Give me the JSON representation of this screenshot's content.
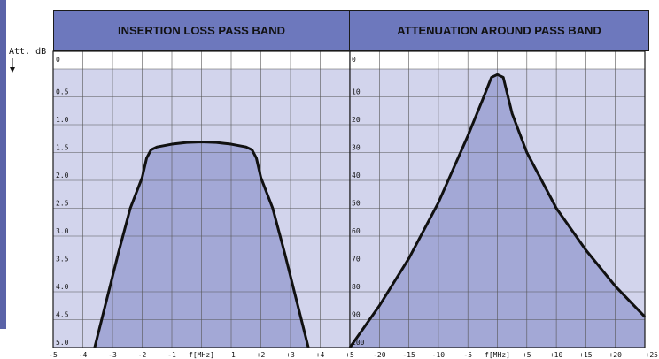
{
  "axis_caption": "Att.  dB",
  "chart_data": [
    {
      "type": "area",
      "title": "INSERTION LOSS PASS BAND",
      "xlabel": "f[MHz]",
      "ylabel": "Att. dB",
      "xlim": [
        -5,
        5
      ],
      "ylim": [
        0,
        5.0
      ],
      "y_inverted": true,
      "grid": true,
      "x_ticks": [
        "-5",
        "-4",
        "-3",
        "-2",
        "-1",
        "f[MHz]",
        "+1",
        "+2",
        "+3",
        "+4",
        "+5"
      ],
      "y_ticks": [
        "0",
        "0.5",
        "1.0",
        "1.5",
        "2.0",
        "2.5",
        "3.0",
        "3.5",
        "4.0",
        "4.5",
        "5.0"
      ],
      "x": [
        -3.6,
        -3.2,
        -2.8,
        -2.4,
        -2.0,
        -1.85,
        -1.7,
        -1.5,
        -1.0,
        -0.5,
        0,
        0.5,
        1.0,
        1.5,
        1.7,
        1.85,
        2.0,
        2.4,
        2.8,
        3.2,
        3.6
      ],
      "y": [
        5.0,
        4.15,
        3.3,
        2.5,
        1.95,
        1.6,
        1.45,
        1.4,
        1.35,
        1.32,
        1.31,
        1.32,
        1.35,
        1.4,
        1.45,
        1.6,
        1.95,
        2.5,
        3.3,
        4.15,
        5.0
      ]
    },
    {
      "type": "area",
      "title": "ATTENUATION AROUND PASS BAND",
      "xlabel": "f[MHz]",
      "ylabel": "Att. dB",
      "xlim": [
        -25,
        25
      ],
      "ylim": [
        0,
        100
      ],
      "y_inverted": true,
      "grid": true,
      "x_ticks": [
        "-20",
        "-15",
        "-10",
        "-5",
        "f[MHz]",
        "+5",
        "+10",
        "+15",
        "+20",
        "+25"
      ],
      "y_ticks": [
        "0",
        "10",
        "20",
        "30",
        "40",
        "50",
        "60",
        "70",
        "80",
        "90",
        "100"
      ],
      "x": [
        -25,
        -20,
        -15,
        -10,
        -5,
        -2.5,
        -1,
        0,
        1,
        2.5,
        5,
        10,
        15,
        20,
        25
      ],
      "y": [
        100,
        85,
        68,
        48,
        24,
        11,
        3,
        2,
        3,
        16,
        30,
        50,
        65,
        78,
        89
      ]
    }
  ]
}
